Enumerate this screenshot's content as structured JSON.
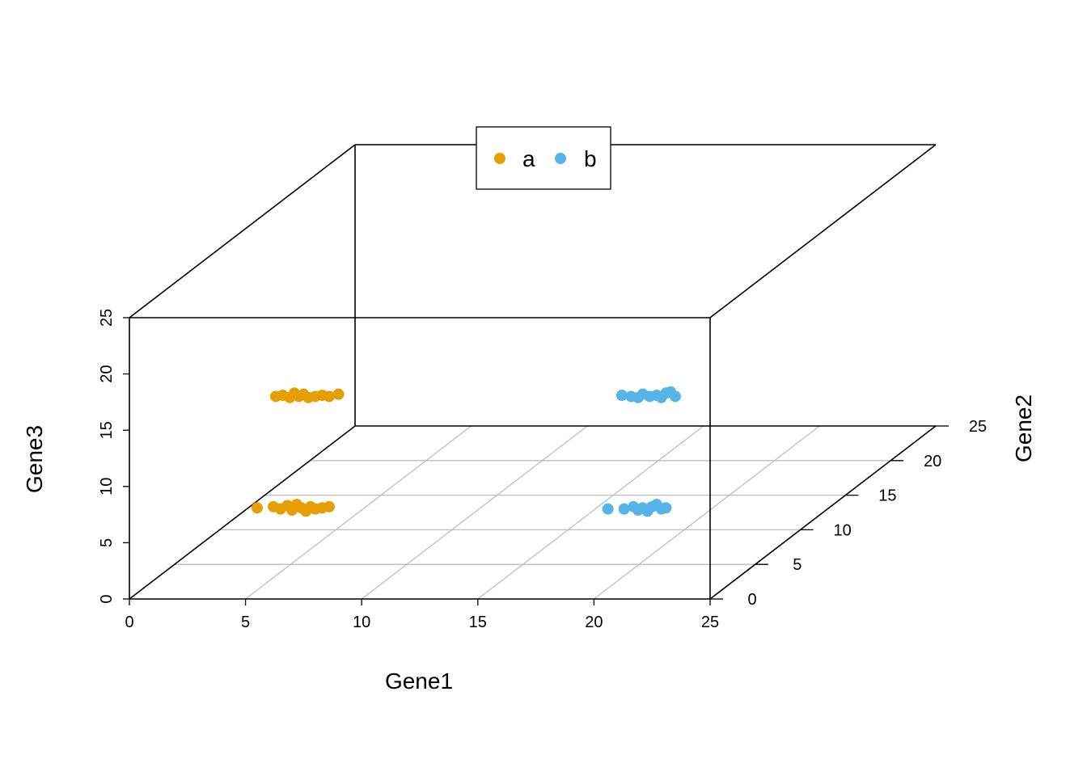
{
  "chart_data": {
    "type": "scatter",
    "xlabel": "Gene1",
    "ylabel": "Gene2",
    "zlabel": "Gene3",
    "xlim": [
      0,
      25
    ],
    "ylim": [
      0,
      25
    ],
    "zlim": [
      0,
      25
    ],
    "xticks": [
      "0",
      "5",
      "10",
      "15",
      "20",
      "25"
    ],
    "yticks": [
      "0",
      "5",
      "10",
      "15",
      "20",
      "25"
    ],
    "zticks": [
      "0",
      "5",
      "10",
      "15",
      "20",
      "25"
    ],
    "grid": true,
    "legend": "top-center",
    "series": [
      {
        "name": "a",
        "color": "#E69F00",
        "points": [
          {
            "x": 5.5,
            "y": 0,
            "z": 8.1
          },
          {
            "x": 6.2,
            "y": 0,
            "z": 8.2
          },
          {
            "x": 6.5,
            "y": 0,
            "z": 8.0
          },
          {
            "x": 6.8,
            "y": 0,
            "z": 8.3
          },
          {
            "x": 7.0,
            "y": 0,
            "z": 7.9
          },
          {
            "x": 7.2,
            "y": 0,
            "z": 8.4
          },
          {
            "x": 7.4,
            "y": 0,
            "z": 8.1
          },
          {
            "x": 7.6,
            "y": 0,
            "z": 7.8
          },
          {
            "x": 7.8,
            "y": 0,
            "z": 8.2
          },
          {
            "x": 8.0,
            "y": 0,
            "z": 8.0
          },
          {
            "x": 8.3,
            "y": 0,
            "z": 8.1
          },
          {
            "x": 8.6,
            "y": 0,
            "z": 8.2
          },
          {
            "x": 6.3,
            "y": 0,
            "z": 18.0
          },
          {
            "x": 6.6,
            "y": 0,
            "z": 18.1
          },
          {
            "x": 6.9,
            "y": 0,
            "z": 17.9
          },
          {
            "x": 7.1,
            "y": 0,
            "z": 18.3
          },
          {
            "x": 7.3,
            "y": 0,
            "z": 18.0
          },
          {
            "x": 7.5,
            "y": 0,
            "z": 18.2
          },
          {
            "x": 7.7,
            "y": 0,
            "z": 17.9
          },
          {
            "x": 8.0,
            "y": 0,
            "z": 18.0
          },
          {
            "x": 8.3,
            "y": 0,
            "z": 18.1
          },
          {
            "x": 8.6,
            "y": 0,
            "z": 18.0
          },
          {
            "x": 9.0,
            "y": 0,
            "z": 18.2
          }
        ]
      },
      {
        "name": "b",
        "color": "#56B4E9",
        "points": [
          {
            "x": 20.6,
            "y": 0,
            "z": 8.0
          },
          {
            "x": 21.3,
            "y": 0,
            "z": 8.0
          },
          {
            "x": 21.7,
            "y": 0,
            "z": 8.2
          },
          {
            "x": 21.9,
            "y": 0,
            "z": 7.9
          },
          {
            "x": 22.1,
            "y": 0,
            "z": 8.1
          },
          {
            "x": 22.3,
            "y": 0,
            "z": 7.8
          },
          {
            "x": 22.5,
            "y": 0,
            "z": 8.2
          },
          {
            "x": 22.7,
            "y": 0,
            "z": 8.4
          },
          {
            "x": 22.9,
            "y": 0,
            "z": 8.0
          },
          {
            "x": 23.1,
            "y": 0,
            "z": 8.1
          },
          {
            "x": 21.2,
            "y": 0,
            "z": 18.1
          },
          {
            "x": 21.6,
            "y": 0,
            "z": 18.0
          },
          {
            "x": 21.9,
            "y": 0,
            "z": 17.9
          },
          {
            "x": 22.1,
            "y": 0,
            "z": 18.2
          },
          {
            "x": 22.4,
            "y": 0,
            "z": 18.0
          },
          {
            "x": 22.7,
            "y": 0,
            "z": 18.1
          },
          {
            "x": 22.9,
            "y": 0,
            "z": 17.9
          },
          {
            "x": 23.1,
            "y": 0,
            "z": 18.3
          },
          {
            "x": 23.3,
            "y": 0,
            "z": 18.4
          },
          {
            "x": 23.5,
            "y": 0,
            "z": 18.0
          }
        ]
      }
    ]
  }
}
